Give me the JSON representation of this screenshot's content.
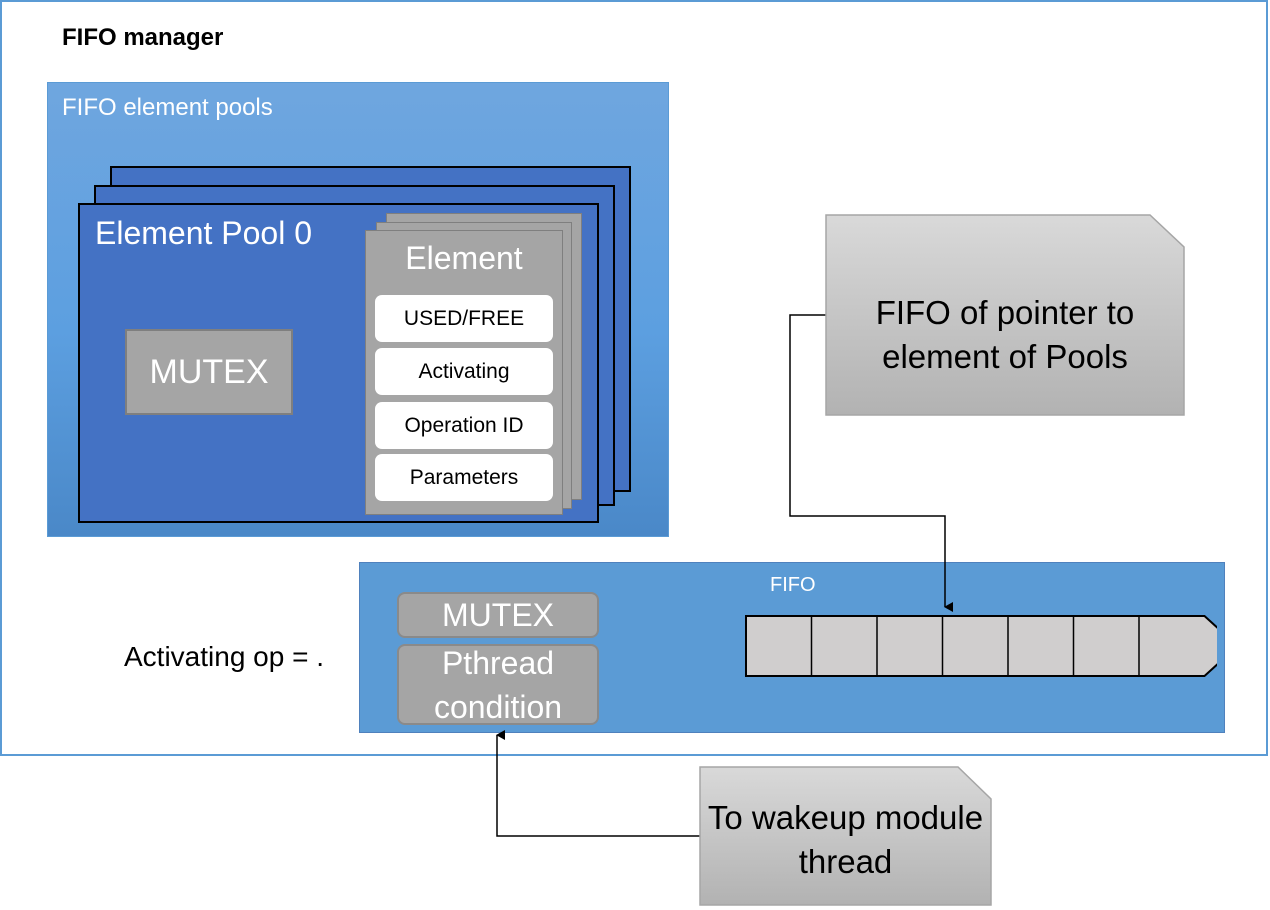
{
  "diagram": {
    "manager_title": "FIFO manager",
    "pools_title": "FIFO element pools",
    "pool_title": "Element Pool 0",
    "pool_mutex": "MUTEX",
    "element": {
      "title": "Element",
      "fields": [
        "USED/FREE",
        "Activating",
        "Operation ID",
        "Parameters"
      ]
    },
    "fifo": {
      "label": "FIFO",
      "mutex": "MUTEX",
      "condition": "Pthread condition",
      "slots": 7
    },
    "activating_text": "Activating op = .",
    "notes": {
      "pointer_fifo": "FIFO of pointer to element of Pools",
      "wakeup": "To wakeup module thread"
    },
    "colors": {
      "outline": "#5b9bd5",
      "pool_card": "#4472c4",
      "fifo_box": "#5b9bd5",
      "gray": "#a5a5a5",
      "slot": "#d0cece"
    }
  }
}
